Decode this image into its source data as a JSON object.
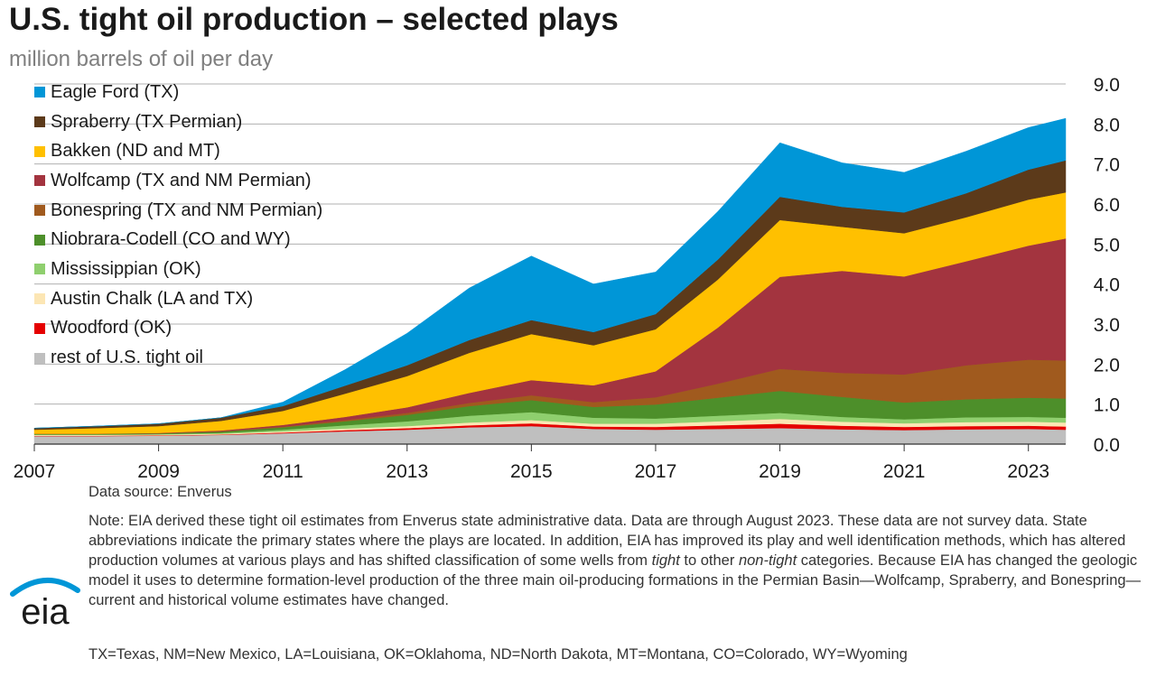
{
  "header": {
    "title": "U.S. tight oil production – selected plays",
    "subtitle": "million barrels of oil per day"
  },
  "footer": {
    "source": "Data source: Enverus",
    "note_parts": [
      "Note: EIA derived these tight oil estimates from Enverus state administrative data. Data are through August 2023. These data are not survey data. State abbreviations indicate the primary states where the plays are located. In addition, EIA has improved its play and well identification methods, which has altered production volumes at various plays and has shifted classification of some wells from ",
      "tight",
      " to other ",
      "non-tight",
      " categories. Because EIA has changed the geologic model it uses to determine formation-level production of the three main oil-producing formations in the Permian Basin—Wolfcamp, Spraberry, and Bonespring—current and historical volume estimates have changed."
    ],
    "abbreviations": "TX=Texas, NM=New Mexico, LA=Louisiana, OK=Oklahoma, ND=North Dakota, MT=Montana, CO=Colorado, WY=Wyoming",
    "logo_text": "eia"
  },
  "colors": {
    "grid": "#b0b0b0",
    "axis": "#333333",
    "logo_blue": "#0096d7"
  },
  "chart_data": {
    "type": "area",
    "stacked": true,
    "x": [
      "2007",
      "2008",
      "2009",
      "2010",
      "2011",
      "2012",
      "2013",
      "2014",
      "2015",
      "2016",
      "2017",
      "2018",
      "2019",
      "2020",
      "2021",
      "2022",
      "2023",
      "2023.6"
    ],
    "xticks": [
      "2007",
      "2009",
      "2011",
      "2013",
      "2015",
      "2017",
      "2019",
      "2021",
      "2023"
    ],
    "yticks": [
      "0.0",
      "1.0",
      "2.0",
      "3.0",
      "4.0",
      "5.0",
      "6.0",
      "7.0",
      "8.0",
      "9.0"
    ],
    "ylim": [
      0,
      9
    ],
    "xlim": [
      2007,
      2023.6
    ],
    "grid": true,
    "y_axis_position": "right",
    "legend_position": "top-left",
    "series": [
      {
        "name": "rest of U.S. tight oil",
        "color": "#bfbfbf",
        "values": [
          0.2,
          0.2,
          0.21,
          0.23,
          0.27,
          0.32,
          0.36,
          0.42,
          0.45,
          0.38,
          0.36,
          0.38,
          0.4,
          0.37,
          0.35,
          0.37,
          0.38,
          0.36
        ]
      },
      {
        "name": "Woodford (OK)",
        "color": "#e50000",
        "values": [
          0.01,
          0.01,
          0.01,
          0.01,
          0.02,
          0.03,
          0.04,
          0.05,
          0.07,
          0.06,
          0.07,
          0.09,
          0.11,
          0.09,
          0.08,
          0.08,
          0.08,
          0.08
        ]
      },
      {
        "name": "Austin Chalk (LA and TX)",
        "color": "#fce6b4",
        "values": [
          0.02,
          0.02,
          0.02,
          0.02,
          0.03,
          0.04,
          0.05,
          0.07,
          0.08,
          0.07,
          0.08,
          0.1,
          0.12,
          0.1,
          0.09,
          0.1,
          0.1,
          0.1
        ]
      },
      {
        "name": "Mississippian (OK)",
        "color": "#8fcf6e",
        "values": [
          0.01,
          0.01,
          0.01,
          0.02,
          0.04,
          0.08,
          0.12,
          0.17,
          0.2,
          0.15,
          0.13,
          0.14,
          0.15,
          0.12,
          0.1,
          0.12,
          0.12,
          0.12
        ]
      },
      {
        "name": "Niobrara-Codell (CO and WY)",
        "color": "#4d8f2a",
        "values": [
          0.02,
          0.02,
          0.02,
          0.03,
          0.06,
          0.1,
          0.16,
          0.24,
          0.3,
          0.27,
          0.35,
          0.45,
          0.55,
          0.5,
          0.42,
          0.45,
          0.48,
          0.48
        ]
      },
      {
        "name": "Bonespring (TX and NM Permian)",
        "color": "#a05a1e",
        "values": [
          0.0,
          0.0,
          0.0,
          0.01,
          0.02,
          0.03,
          0.05,
          0.08,
          0.12,
          0.12,
          0.18,
          0.35,
          0.55,
          0.6,
          0.7,
          0.85,
          0.95,
          0.95
        ]
      },
      {
        "name": "Wolfcamp (TX and NM Permian)",
        "color": "#a3343f",
        "values": [
          0.0,
          0.0,
          0.01,
          0.02,
          0.04,
          0.08,
          0.14,
          0.25,
          0.38,
          0.42,
          0.65,
          1.4,
          2.3,
          2.55,
          2.45,
          2.6,
          2.85,
          3.05
        ]
      },
      {
        "name": "Bakken (ND and MT)",
        "color": "#ffc000",
        "values": [
          0.1,
          0.14,
          0.17,
          0.24,
          0.35,
          0.58,
          0.78,
          1.0,
          1.15,
          1.0,
          1.05,
          1.2,
          1.42,
          1.1,
          1.08,
          1.1,
          1.15,
          1.15
        ]
      },
      {
        "name": "Spraberry (TX Permian)",
        "color": "#5c3a1a",
        "values": [
          0.04,
          0.05,
          0.06,
          0.08,
          0.12,
          0.2,
          0.27,
          0.32,
          0.35,
          0.33,
          0.38,
          0.5,
          0.58,
          0.5,
          0.52,
          0.6,
          0.75,
          0.8
        ]
      },
      {
        "name": "Eagle Ford (TX)",
        "color": "#0096d7",
        "values": [
          0.0,
          0.0,
          0.0,
          0.0,
          0.1,
          0.4,
          0.8,
          1.3,
          1.6,
          1.2,
          1.05,
          1.2,
          1.35,
          1.1,
          1.0,
          1.05,
          1.05,
          1.05
        ]
      }
    ]
  }
}
